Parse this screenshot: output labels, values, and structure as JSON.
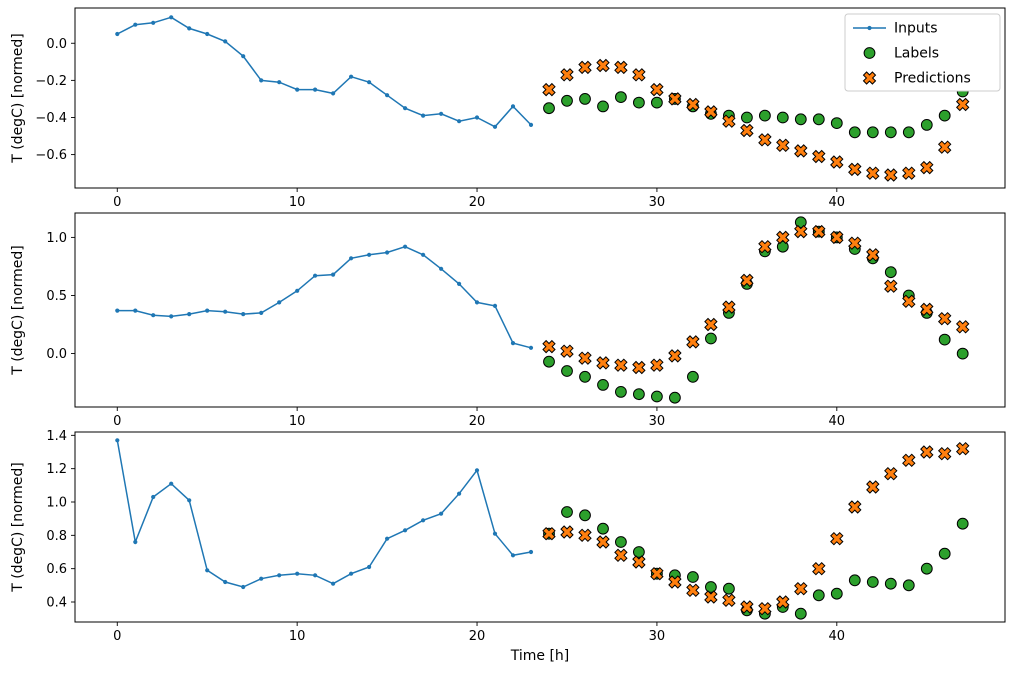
{
  "figure": {
    "xlabel": "Time [h]",
    "ylabel": "T (degC) [normed]",
    "legend": [
      {
        "label": "Inputs",
        "marker": "line-dot",
        "color": "#1f77b4"
      },
      {
        "label": "Labels",
        "marker": "circle",
        "color": "#2ca02c"
      },
      {
        "label": "Predictions",
        "marker": "x",
        "color": "#ff7f0e"
      }
    ]
  },
  "chart_data": [
    {
      "type": "line",
      "title": "",
      "xlabel": "",
      "ylabel": "T (degC) [normed]",
      "xlim": [
        -2.35,
        49.35
      ],
      "ylim": [
        -0.78,
        0.19
      ],
      "xticks": [
        0,
        10,
        20,
        30,
        40
      ],
      "xticklabels": [
        "0",
        "10",
        "20",
        "30",
        "40"
      ],
      "yticks": [
        0.0,
        -0.2,
        -0.4,
        -0.6
      ],
      "yticklabels": [
        "0.0",
        "−0.2",
        "−0.4",
        "−0.6"
      ],
      "grid": false,
      "series": [
        {
          "name": "Inputs",
          "marker": "line-dot",
          "color": "#1f77b4",
          "x": [
            0,
            1,
            2,
            3,
            4,
            5,
            6,
            7,
            8,
            9,
            10,
            11,
            12,
            13,
            14,
            15,
            16,
            17,
            18,
            19,
            20,
            21,
            22,
            23
          ],
          "values": [
            0.05,
            0.1,
            0.11,
            0.14,
            0.08,
            0.05,
            0.01,
            -0.07,
            -0.2,
            -0.21,
            -0.25,
            -0.25,
            -0.27,
            -0.18,
            -0.21,
            -0.28,
            -0.35,
            -0.39,
            -0.38,
            -0.42,
            -0.4,
            -0.45,
            -0.34,
            -0.44
          ]
        },
        {
          "name": "Labels",
          "marker": "circle",
          "color": "#2ca02c",
          "x": [
            24,
            25,
            26,
            27,
            28,
            29,
            30,
            31,
            32,
            33,
            34,
            35,
            36,
            37,
            38,
            39,
            40,
            41,
            42,
            43,
            44,
            45,
            46,
            47
          ],
          "values": [
            -0.35,
            -0.31,
            -0.3,
            -0.34,
            -0.29,
            -0.32,
            -0.32,
            -0.3,
            -0.34,
            -0.38,
            -0.39,
            -0.4,
            -0.39,
            -0.4,
            -0.41,
            -0.41,
            -0.43,
            -0.48,
            -0.48,
            -0.48,
            -0.48,
            -0.44,
            -0.39,
            -0.26
          ]
        },
        {
          "name": "Predictions",
          "marker": "x",
          "color": "#ff7f0e",
          "x": [
            24,
            25,
            26,
            27,
            28,
            29,
            30,
            31,
            32,
            33,
            34,
            35,
            36,
            37,
            38,
            39,
            40,
            41,
            42,
            43,
            44,
            45,
            46,
            47
          ],
          "values": [
            -0.25,
            -0.17,
            -0.13,
            -0.12,
            -0.13,
            -0.17,
            -0.25,
            -0.3,
            -0.33,
            -0.37,
            -0.42,
            -0.47,
            -0.52,
            -0.55,
            -0.58,
            -0.61,
            -0.64,
            -0.68,
            -0.7,
            -0.71,
            -0.7,
            -0.67,
            -0.56,
            -0.33
          ]
        }
      ]
    },
    {
      "type": "line",
      "title": "",
      "xlabel": "",
      "ylabel": "T (degC) [normed]",
      "xlim": [
        -2.35,
        49.35
      ],
      "ylim": [
        -0.46,
        1.21
      ],
      "xticks": [
        0,
        10,
        20,
        30,
        40
      ],
      "xticklabels": [
        "0",
        "10",
        "20",
        "30",
        "40"
      ],
      "yticks": [
        0.0,
        0.5,
        1.0
      ],
      "yticklabels": [
        "0.0",
        "0.5",
        "1.0"
      ],
      "grid": false,
      "series": [
        {
          "name": "Inputs",
          "marker": "line-dot",
          "color": "#1f77b4",
          "x": [
            0,
            1,
            2,
            3,
            4,
            5,
            6,
            7,
            8,
            9,
            10,
            11,
            12,
            13,
            14,
            15,
            16,
            17,
            18,
            19,
            20,
            21,
            22,
            23
          ],
          "values": [
            0.37,
            0.37,
            0.33,
            0.32,
            0.34,
            0.37,
            0.36,
            0.34,
            0.35,
            0.44,
            0.54,
            0.67,
            0.68,
            0.82,
            0.85,
            0.87,
            0.92,
            0.85,
            0.73,
            0.6,
            0.44,
            0.41,
            0.09,
            0.05
          ]
        },
        {
          "name": "Labels",
          "marker": "circle",
          "color": "#2ca02c",
          "x": [
            24,
            25,
            26,
            27,
            28,
            29,
            30,
            31,
            32,
            33,
            34,
            35,
            36,
            37,
            38,
            39,
            40,
            41,
            42,
            43,
            44,
            45,
            46,
            47
          ],
          "values": [
            -0.07,
            -0.15,
            -0.2,
            -0.27,
            -0.33,
            -0.35,
            -0.37,
            -0.38,
            -0.2,
            0.13,
            0.35,
            0.6,
            0.88,
            0.92,
            1.13,
            1.05,
            1.0,
            0.9,
            0.82,
            0.7,
            0.5,
            0.35,
            0.12,
            0.0
          ]
        },
        {
          "name": "Predictions",
          "marker": "x",
          "color": "#ff7f0e",
          "x": [
            24,
            25,
            26,
            27,
            28,
            29,
            30,
            31,
            32,
            33,
            34,
            35,
            36,
            37,
            38,
            39,
            40,
            41,
            42,
            43,
            44,
            45,
            46,
            47
          ],
          "values": [
            0.06,
            0.02,
            -0.04,
            -0.08,
            -0.1,
            -0.12,
            -0.1,
            -0.02,
            0.1,
            0.25,
            0.4,
            0.63,
            0.92,
            1.0,
            1.05,
            1.05,
            1.0,
            0.95,
            0.85,
            0.58,
            0.45,
            0.38,
            0.3,
            0.23
          ]
        }
      ]
    },
    {
      "type": "line",
      "title": "",
      "xlabel": "Time [h]",
      "ylabel": "T (degC) [normed]",
      "xlim": [
        -2.35,
        49.35
      ],
      "ylim": [
        0.28,
        1.42
      ],
      "xticks": [
        0,
        10,
        20,
        30,
        40
      ],
      "xticklabels": [
        "0",
        "10",
        "20",
        "30",
        "40"
      ],
      "yticks": [
        0.4,
        0.6,
        0.8,
        1.0,
        1.2,
        1.4
      ],
      "yticklabels": [
        "0.4",
        "0.6",
        "0.8",
        "1.0",
        "1.2",
        "1.4"
      ],
      "grid": false,
      "series": [
        {
          "name": "Inputs",
          "marker": "line-dot",
          "color": "#1f77b4",
          "x": [
            0,
            1,
            2,
            3,
            4,
            5,
            6,
            7,
            8,
            9,
            10,
            11,
            12,
            13,
            14,
            15,
            16,
            17,
            18,
            19,
            20,
            21,
            22,
            23
          ],
          "values": [
            1.37,
            0.76,
            1.03,
            1.11,
            1.01,
            0.59,
            0.52,
            0.49,
            0.54,
            0.56,
            0.57,
            0.56,
            0.51,
            0.57,
            0.61,
            0.78,
            0.83,
            0.89,
            0.93,
            1.05,
            1.19,
            0.81,
            0.68,
            0.7
          ]
        },
        {
          "name": "Labels",
          "marker": "circle",
          "color": "#2ca02c",
          "x": [
            24,
            25,
            26,
            27,
            28,
            29,
            30,
            31,
            32,
            33,
            34,
            35,
            36,
            37,
            38,
            39,
            40,
            41,
            42,
            43,
            44,
            45,
            46,
            47
          ],
          "values": [
            0.81,
            0.94,
            0.92,
            0.84,
            0.76,
            0.7,
            0.57,
            0.56,
            0.55,
            0.49,
            0.48,
            0.35,
            0.33,
            0.37,
            0.33,
            0.44,
            0.45,
            0.53,
            0.52,
            0.51,
            0.5,
            0.6,
            0.69,
            0.87
          ]
        },
        {
          "name": "Predictions",
          "marker": "x",
          "color": "#ff7f0e",
          "x": [
            24,
            25,
            26,
            27,
            28,
            29,
            30,
            31,
            32,
            33,
            34,
            35,
            36,
            37,
            38,
            39,
            40,
            41,
            42,
            43,
            44,
            45,
            46,
            47
          ],
          "values": [
            0.81,
            0.82,
            0.8,
            0.76,
            0.68,
            0.64,
            0.57,
            0.52,
            0.47,
            0.43,
            0.41,
            0.37,
            0.36,
            0.4,
            0.48,
            0.6,
            0.78,
            0.97,
            1.09,
            1.17,
            1.25,
            1.3,
            1.29,
            1.32
          ]
        }
      ]
    }
  ]
}
